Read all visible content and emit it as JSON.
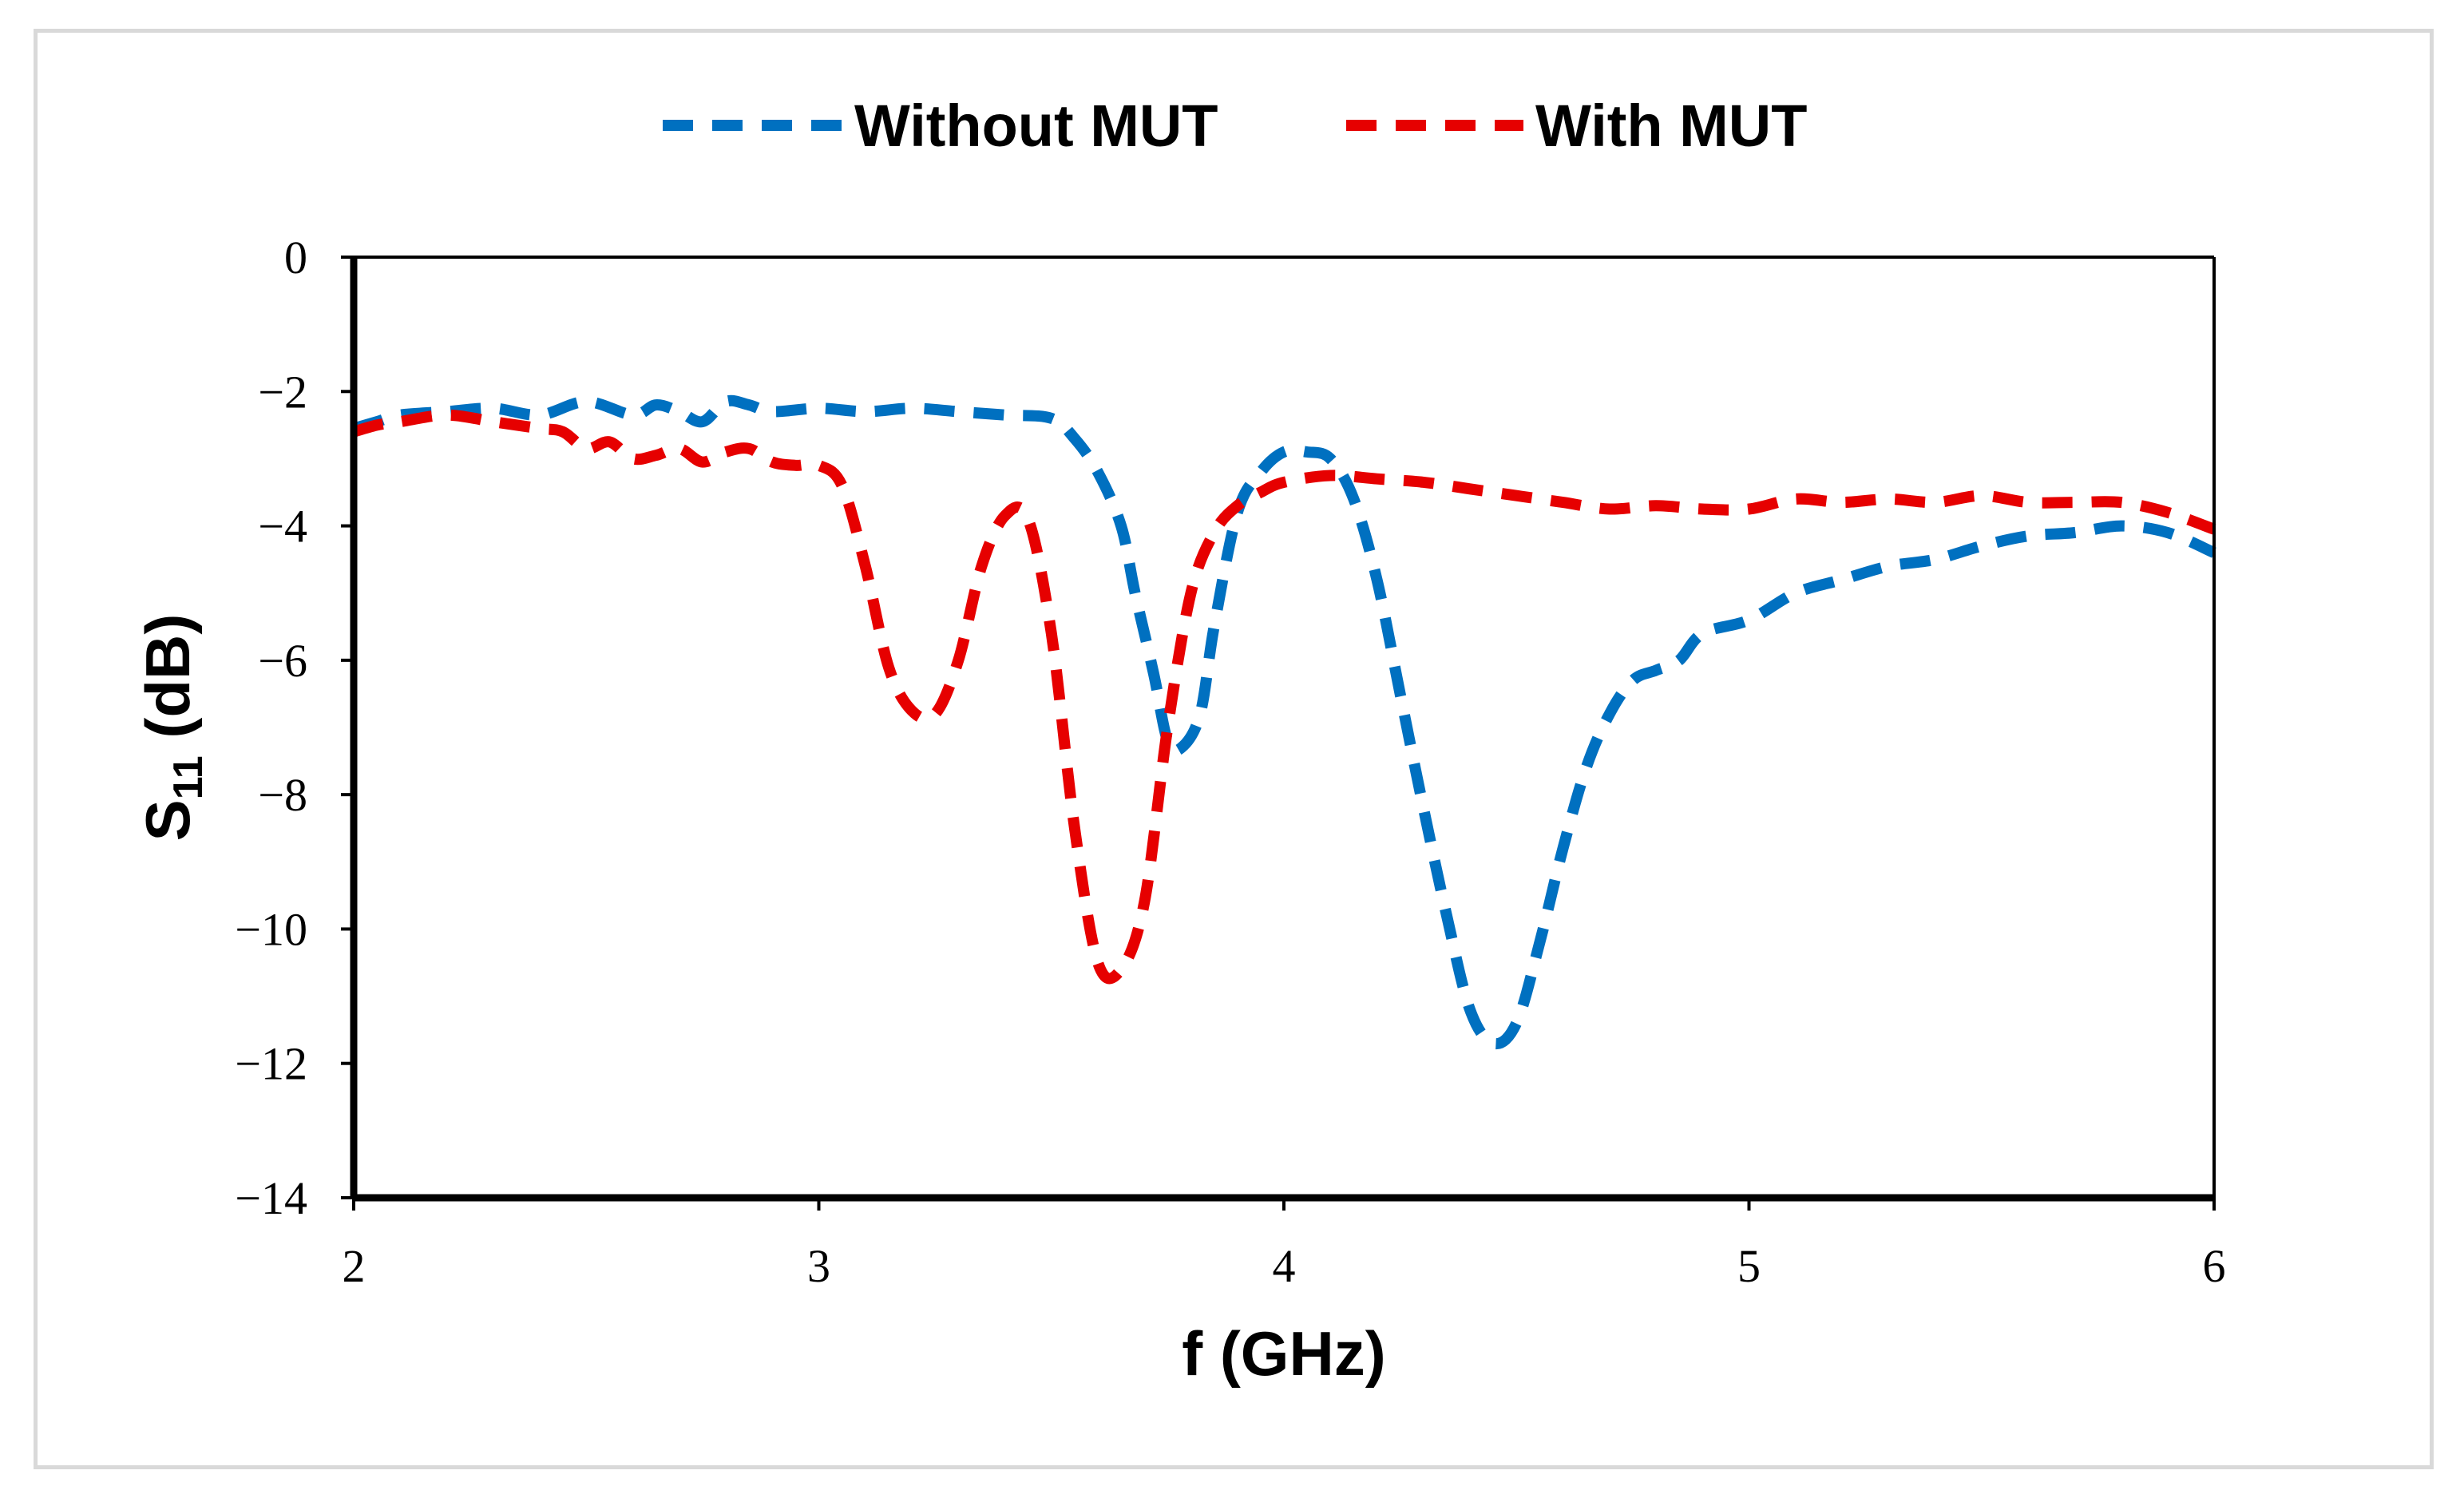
{
  "chart_data": {
    "type": "line",
    "xlabel": "f (GHz)",
    "ylabel": {
      "main": "S",
      "sub": "11",
      "unit": " (dB)"
    },
    "xlim": [
      2,
      6
    ],
    "ylim": [
      -14,
      0
    ],
    "xticks": [
      2,
      3,
      4,
      5,
      6
    ],
    "xtick_labels": [
      "2",
      "3",
      "4",
      "5",
      "6"
    ],
    "yticks": [
      0,
      -2,
      -4,
      -6,
      -8,
      -10,
      -12,
      -14
    ],
    "ytick_labels": [
      "0",
      "−2",
      "−4",
      "−6",
      "−8",
      "−10",
      "−12",
      "−14"
    ],
    "grid": false,
    "legend_position": "top-center",
    "series": [
      {
        "name": "Without MUT",
        "color": "#0070C0",
        "style": "dashed",
        "x": [
          2.0,
          2.05,
          2.1,
          2.2,
          2.3,
          2.4,
          2.5,
          2.6,
          2.65,
          2.7,
          2.75,
          2.8,
          2.85,
          2.9,
          3.0,
          3.1,
          3.2,
          3.3,
          3.4,
          3.5,
          3.55,
          3.6,
          3.65,
          3.68,
          3.72,
          3.75,
          3.78,
          3.82,
          3.85,
          3.9,
          3.95,
          4.0,
          4.05,
          4.1,
          4.15,
          4.2,
          4.25,
          4.3,
          4.35,
          4.4,
          4.45,
          4.5,
          4.55,
          4.6,
          4.65,
          4.7,
          4.75,
          4.8,
          4.85,
          4.9,
          5.0,
          5.1,
          5.2,
          5.3,
          5.4,
          5.5,
          5.6,
          5.7,
          5.8,
          5.9,
          6.0
        ],
        "y": [
          -2.55,
          -2.45,
          -2.35,
          -2.3,
          -2.25,
          -2.35,
          -2.15,
          -2.35,
          -2.2,
          -2.3,
          -2.45,
          -2.15,
          -2.2,
          -2.3,
          -2.25,
          -2.3,
          -2.25,
          -2.3,
          -2.35,
          -2.4,
          -2.7,
          -3.2,
          -4.0,
          -5.0,
          -6.2,
          -7.2,
          -7.3,
          -6.8,
          -5.5,
          -3.8,
          -3.2,
          -2.9,
          -2.9,
          -3.0,
          -3.6,
          -4.8,
          -6.5,
          -8.2,
          -9.8,
          -11.2,
          -11.7,
          -11.4,
          -10.2,
          -8.8,
          -7.6,
          -6.8,
          -6.3,
          -6.15,
          -6.0,
          -5.6,
          -5.4,
          -5.0,
          -4.8,
          -4.6,
          -4.5,
          -4.3,
          -4.15,
          -4.1,
          -4.0,
          -4.1,
          -4.4
        ]
      },
      {
        "name": "With MUT",
        "color": "#E60000",
        "style": "dashed",
        "x": [
          2.0,
          2.05,
          2.1,
          2.2,
          2.3,
          2.4,
          2.45,
          2.5,
          2.55,
          2.6,
          2.65,
          2.7,
          2.75,
          2.8,
          2.85,
          2.9,
          2.95,
          3.0,
          3.05,
          3.1,
          3.15,
          3.2,
          3.25,
          3.3,
          3.35,
          3.4,
          3.45,
          3.5,
          3.55,
          3.6,
          3.65,
          3.7,
          3.75,
          3.8,
          3.85,
          3.9,
          3.95,
          4.0,
          4.1,
          4.2,
          4.3,
          4.4,
          4.5,
          4.6,
          4.7,
          4.8,
          4.9,
          5.0,
          5.1,
          5.2,
          5.3,
          5.4,
          5.5,
          5.6,
          5.7,
          5.8,
          5.9,
          6.0
        ],
        "y": [
          -2.6,
          -2.5,
          -2.45,
          -2.35,
          -2.45,
          -2.55,
          -2.6,
          -2.85,
          -2.75,
          -3.0,
          -2.95,
          -2.85,
          -3.05,
          -2.9,
          -2.85,
          -3.05,
          -3.1,
          -3.1,
          -3.4,
          -4.6,
          -6.1,
          -6.75,
          -6.8,
          -6.0,
          -4.6,
          -3.85,
          -3.9,
          -5.6,
          -8.5,
          -10.5,
          -10.6,
          -9.6,
          -7.0,
          -5.0,
          -4.1,
          -3.7,
          -3.5,
          -3.35,
          -3.25,
          -3.3,
          -3.35,
          -3.45,
          -3.55,
          -3.65,
          -3.75,
          -3.7,
          -3.75,
          -3.75,
          -3.6,
          -3.65,
          -3.6,
          -3.65,
          -3.55,
          -3.65,
          -3.65,
          -3.65,
          -3.8,
          -4.05
        ]
      }
    ]
  }
}
